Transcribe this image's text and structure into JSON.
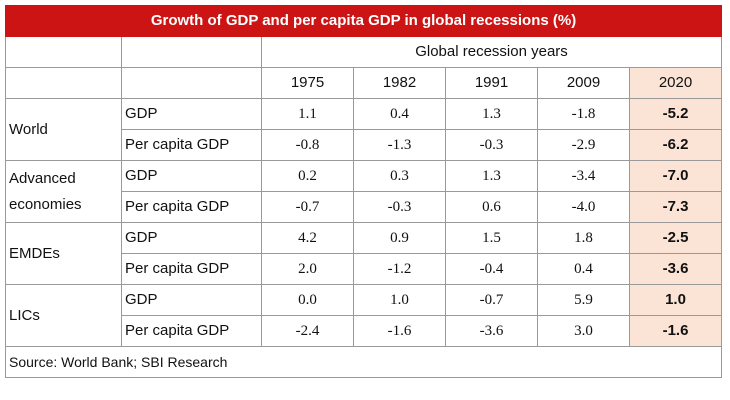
{
  "chart_data": {
    "type": "table",
    "title": "Growth of GDP and per capita GDP in global recessions (%)",
    "column_group_label": "Global recession years",
    "columns": [
      "1975",
      "1982",
      "1991",
      "2009",
      "2020"
    ],
    "highlight_column": "2020",
    "rows": [
      {
        "region": "World",
        "metrics": [
          {
            "name": "GDP",
            "values": [
              "1.1",
              "0.4",
              "1.3",
              "-1.8",
              "-5.2"
            ]
          },
          {
            "name": "Per capita GDP",
            "values": [
              "-0.8",
              "-1.3",
              "-0.3",
              "-2.9",
              "-6.2"
            ]
          }
        ]
      },
      {
        "region": "Advanced economies",
        "metrics": [
          {
            "name": "GDP",
            "values": [
              "0.2",
              "0.3",
              "1.3",
              "-3.4",
              "-7.0"
            ]
          },
          {
            "name": "Per capita GDP",
            "values": [
              "-0.7",
              "-0.3",
              "0.6",
              "-4.0",
              "-7.3"
            ]
          }
        ]
      },
      {
        "region": "EMDEs",
        "metrics": [
          {
            "name": "GDP",
            "values": [
              "4.2",
              "0.9",
              "1.5",
              "1.8",
              "-2.5"
            ]
          },
          {
            "name": "Per capita GDP",
            "values": [
              "2.0",
              "-1.2",
              "-0.4",
              "0.4",
              "-3.6"
            ]
          }
        ]
      },
      {
        "region": "LICs",
        "metrics": [
          {
            "name": "GDP",
            "values": [
              "0.0",
              "1.0",
              "-0.7",
              "5.9",
              "1.0"
            ]
          },
          {
            "name": "Per capita GDP",
            "values": [
              "-2.4",
              "-1.6",
              "-3.6",
              "3.0",
              "-1.6"
            ]
          }
        ]
      }
    ],
    "source": "Source: World Bank; SBI Research"
  },
  "colors": {
    "title_bg": "#cc1414",
    "title_text": "#ffffff",
    "highlight_bg": "#fbe4d5",
    "border": "#9a9a9a"
  }
}
